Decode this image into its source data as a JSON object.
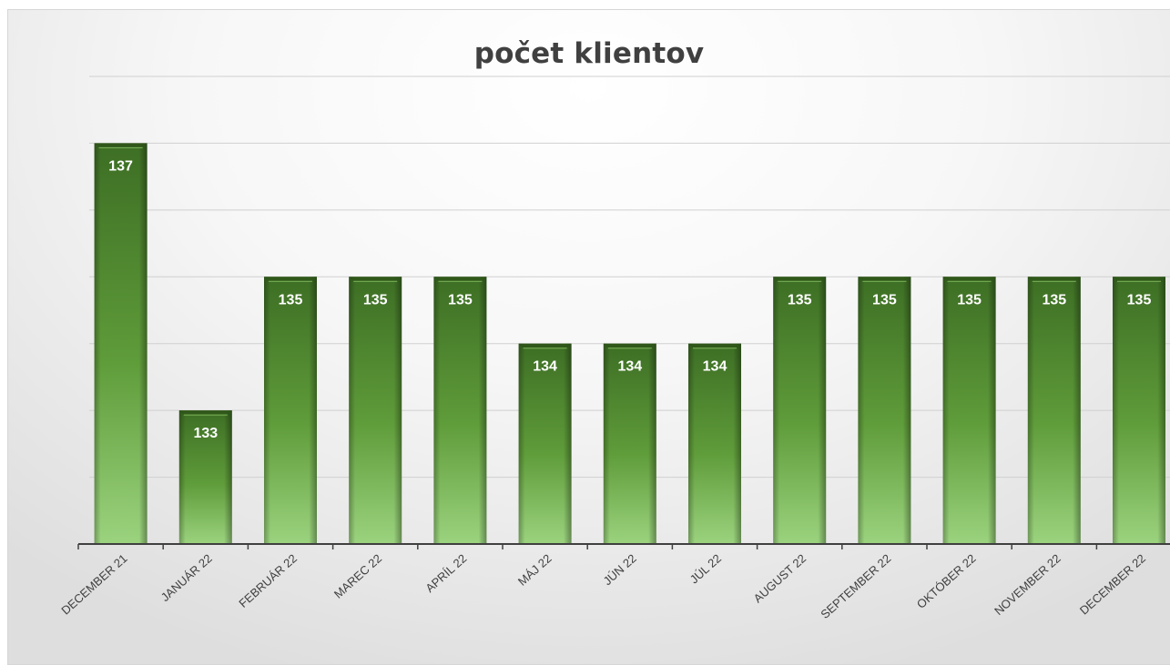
{
  "chart_data": {
    "type": "bar",
    "title": "počet klientov",
    "categories": [
      "DECEMBER 21",
      "JANUÁR 22",
      "FEBRUÁR 22",
      "MAREC 22",
      "APRÍL 22",
      "MÁJ 22",
      "JÚN 22",
      "JÚL 22",
      "AUGUST 22",
      "SEPTEMBER 22",
      "OKTÓBER 22",
      "NOVEMBER 22",
      "DECEMBER 22"
    ],
    "values": [
      137,
      133,
      135,
      135,
      135,
      134,
      134,
      134,
      135,
      135,
      135,
      135,
      135
    ],
    "data_labels": [
      "137",
      "133",
      "135",
      "135",
      "135",
      "134",
      "134",
      "134",
      "135",
      "135",
      "135",
      "135",
      "135"
    ],
    "xlabel": "",
    "ylabel": "",
    "ylim": [
      131,
      138
    ],
    "grid": true,
    "legend": "none",
    "colors": {
      "bar_light": "#9bd37e",
      "bar_mid": "#5f9c3a",
      "bar_dark": "#3b6b22",
      "grid": "#d0d0d0",
      "axis": "#404040"
    }
  }
}
